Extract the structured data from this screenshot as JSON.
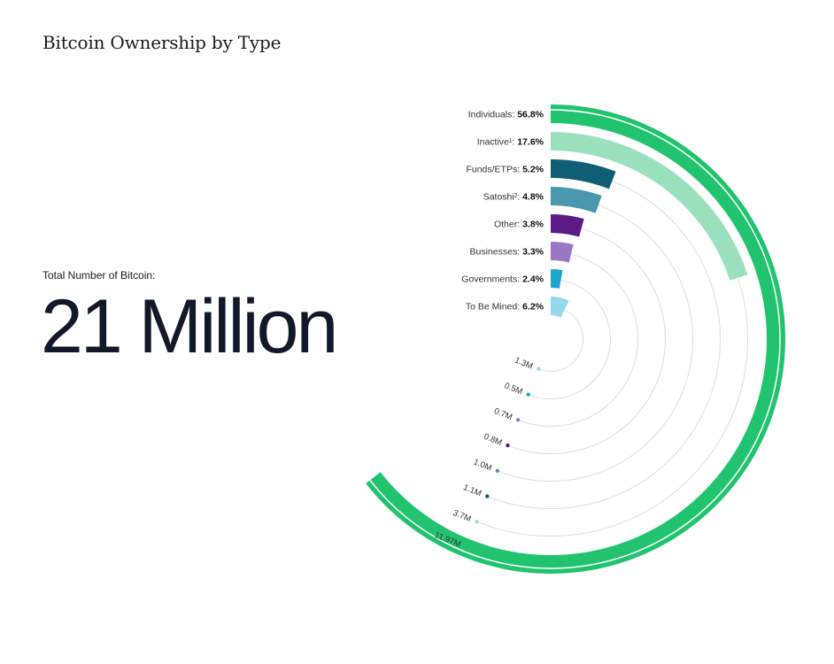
{
  "title": "Bitcoin Ownership by Type",
  "total": {
    "label": "Total Number of Bitcoin:",
    "value": "21 Million"
  },
  "chart_data": {
    "type": "radial-bar",
    "title": "Bitcoin Ownership by Type",
    "total_label": "Total Number of Bitcoin:",
    "total_value": "21 Million",
    "series": [
      {
        "category": "Individuals",
        "label": "Individuals: ",
        "percent": 56.8,
        "percent_label": "56.8%",
        "amount_label": "11.97M",
        "color": "#22c36f"
      },
      {
        "category": "Inactive",
        "label": "Inactive¹: ",
        "percent": 17.6,
        "percent_label": "17.6%",
        "amount_label": "3.7M",
        "color": "#9be0bd"
      },
      {
        "category": "Funds/ETPs",
        "label": "Funds/ETPs: ",
        "percent": 5.2,
        "percent_label": "5.2%",
        "amount_label": "1.1M",
        "color": "#0f5e74"
      },
      {
        "category": "Satoshi",
        "label": "Satoshi²: ",
        "percent": 4.8,
        "percent_label": "4.8%",
        "amount_label": "1.0M",
        "color": "#4a98ad"
      },
      {
        "category": "Other",
        "label": "Other: ",
        "percent": 3.8,
        "percent_label": "3.8%",
        "amount_label": "0.8M",
        "color": "#5b1a86"
      },
      {
        "category": "Businesses",
        "label": "Businesses: ",
        "percent": 3.3,
        "percent_label": "3.3%",
        "amount_label": "0.7M",
        "color": "#9a77c4"
      },
      {
        "category": "Governments",
        "label": "Governments: ",
        "percent": 2.4,
        "percent_label": "2.4%",
        "amount_label": "0.5M",
        "color": "#1aa6cf"
      },
      {
        "category": "To Be Mined",
        "label": "To Be Mined: ",
        "percent": 6.2,
        "percent_label": "6.2%",
        "amount_label": "1.3M",
        "color": "#93d9ea"
      }
    ]
  }
}
